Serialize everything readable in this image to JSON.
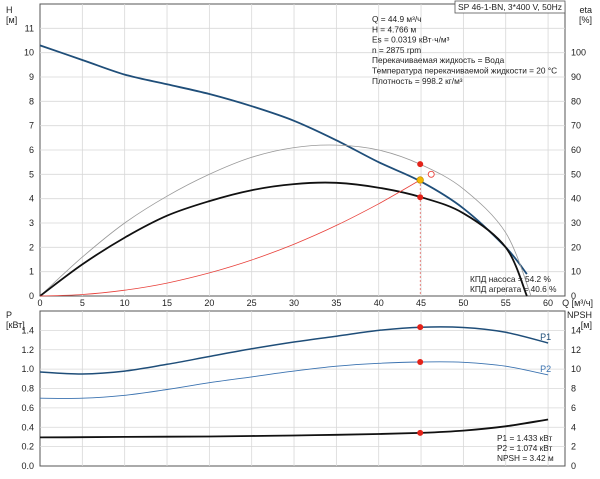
{
  "chart_data": [
    {
      "type": "line",
      "title": "SP 46-1-BN, 3*400 V, 50Hz",
      "left_axis_label": "H\n[м]",
      "right_axis_label": "eta\n[%]",
      "x_axis_label": "Q [м³/ч]",
      "xlim": [
        0,
        62
      ],
      "ylim_left": [
        0,
        12
      ],
      "ylim_right": [
        0,
        120
      ],
      "x_ticks": [
        0,
        5,
        10,
        15,
        20,
        25,
        30,
        35,
        40,
        45,
        50,
        55,
        60
      ],
      "y_ticks_left": [
        0,
        1,
        2,
        3,
        4,
        5,
        6,
        7,
        8,
        9,
        10,
        11
      ],
      "y_ticks_right": [
        0,
        10,
        20,
        30,
        40,
        50,
        60,
        70,
        80,
        90,
        100
      ],
      "grid": true,
      "series": [
        {
          "role": "head",
          "color": "#1f4e79",
          "width": 1.8,
          "axis": "left",
          "x": [
            0,
            5,
            10,
            15,
            20,
            25,
            30,
            35,
            40,
            45,
            50,
            55,
            57.5
          ],
          "y": [
            10.3,
            9.7,
            9.1,
            8.7,
            8.3,
            7.8,
            7.2,
            6.4,
            5.5,
            4.7,
            3.6,
            2.0,
            0.9
          ]
        },
        {
          "role": "pump-efficiency",
          "color": "#999999",
          "width": 0.8,
          "axis": "right",
          "x": [
            0,
            5,
            10,
            15,
            20,
            25,
            30,
            35,
            40,
            45,
            50,
            55,
            58
          ],
          "y": [
            0,
            16,
            30,
            41,
            50,
            57,
            61,
            62,
            60,
            54,
            44,
            26,
            0
          ]
        },
        {
          "role": "unit-efficiency",
          "color": "#111111",
          "width": 1.8,
          "axis": "right",
          "x": [
            0,
            5,
            10,
            15,
            20,
            25,
            30,
            35,
            40,
            45,
            50,
            55,
            57.5
          ],
          "y": [
            0,
            13,
            24,
            33,
            39,
            43.5,
            46,
            46.5,
            44.5,
            40.6,
            34,
            20,
            0
          ]
        },
        {
          "role": "system-curve",
          "color": "#e8403a",
          "width": 0.8,
          "axis": "left",
          "x": [
            0,
            5,
            10,
            15,
            20,
            25,
            30,
            35,
            40,
            44.9
          ],
          "y": [
            0,
            0.06,
            0.24,
            0.53,
            0.95,
            1.48,
            2.13,
            2.9,
            3.79,
            4.766
          ]
        }
      ],
      "markers": [
        {
          "x": 44.9,
          "y": 5.42,
          "axis": "left",
          "style": "red-dot"
        },
        {
          "x": 44.9,
          "y": 4.766,
          "axis": "left",
          "style": "yellow-dot"
        },
        {
          "x": 44.9,
          "y": 4.06,
          "axis": "left",
          "style": "red-dot"
        },
        {
          "x": 46.2,
          "y": 5.0,
          "axis": "left",
          "style": "hollow-ring"
        }
      ],
      "info_lines": [
        "Q = 44.9 м³/ч",
        "H = 4.766 м",
        "Es = 0.0319 кВт·ч/м³",
        "n = 2875 rpm",
        "Перекачиваемая жидкость = Вода",
        "Температура перекачиваемой жидкости = 20 °C",
        "Плотность = 998.2 кг/м³"
      ],
      "eff_lines": [
        "КПД насоса = 54.2 %",
        "КПД агрегата = 40.6 %"
      ]
    },
    {
      "type": "line",
      "left_axis_label": "P\n[кВт]",
      "right_axis_label": "NPSH\n[м]",
      "xlim": [
        0,
        62
      ],
      "ylim_left": [
        0,
        1.6
      ],
      "ylim_right": [
        0,
        16
      ],
      "y_ticks_left": [
        "0.0",
        "0.2",
        "0.4",
        "0.6",
        "0.8",
        "1.0",
        "1.2",
        "1.4"
      ],
      "y_ticks_right": [
        0,
        2,
        4,
        6,
        8,
        10,
        12,
        14
      ],
      "grid": true,
      "series": [
        {
          "name": "P1",
          "color": "#1f4e79",
          "width": 1.5,
          "axis": "left",
          "x": [
            0,
            5,
            10,
            15,
            20,
            25,
            30,
            35,
            40,
            45,
            50,
            55,
            60
          ],
          "y": [
            0.97,
            0.95,
            0.98,
            1.05,
            1.13,
            1.21,
            1.28,
            1.34,
            1.4,
            1.433,
            1.43,
            1.38,
            1.27
          ]
        },
        {
          "name": "P2",
          "color": "#3a72b0",
          "width": 0.9,
          "axis": "left",
          "x": [
            0,
            5,
            10,
            15,
            20,
            25,
            30,
            35,
            40,
            45,
            50,
            55,
            60
          ],
          "y": [
            0.7,
            0.7,
            0.73,
            0.79,
            0.86,
            0.92,
            0.98,
            1.03,
            1.06,
            1.074,
            1.07,
            1.03,
            0.94
          ]
        },
        {
          "role": "npsh",
          "color": "#111111",
          "width": 1.8,
          "axis": "right",
          "x": [
            0,
            5,
            10,
            15,
            20,
            25,
            30,
            35,
            40,
            45,
            50,
            55,
            60
          ],
          "y": [
            2.95,
            2.97,
            3.0,
            3.02,
            3.05,
            3.1,
            3.15,
            3.22,
            3.3,
            3.42,
            3.65,
            4.1,
            4.8
          ]
        }
      ],
      "markers": [
        {
          "x": 44.9,
          "y": 1.433,
          "axis": "left",
          "style": "red-dot"
        },
        {
          "x": 44.9,
          "y": 1.074,
          "axis": "left",
          "style": "red-dot"
        },
        {
          "x": 44.9,
          "y": 3.42,
          "axis": "right",
          "style": "red-dot"
        }
      ],
      "info_lines": [
        "P1 = 1.433 кВт",
        "P2 = 1.074 кВт",
        "NPSH = 3.42 м"
      ]
    }
  ]
}
